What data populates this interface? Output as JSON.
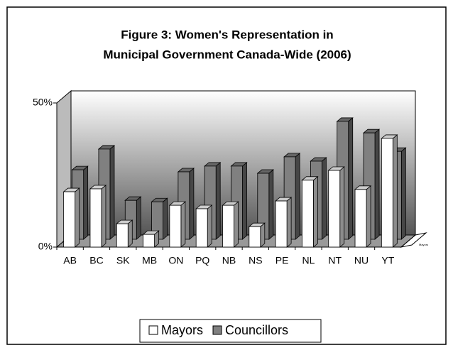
{
  "chart_data": {
    "type": "bar3d",
    "title": [
      "Figure 3: Women's Representation in",
      "Municipal Government Canada-Wide (2006)"
    ],
    "categories": [
      "AB",
      "BC",
      "SK",
      "MB",
      "ON",
      "PQ",
      "NB",
      "NS",
      "PE",
      "NL",
      "NT",
      "NU",
      "YT"
    ],
    "series": [
      {
        "name": "Mayors",
        "color": "#ffffff",
        "values": [
          19.2,
          20.2,
          8.1,
          4.4,
          14.5,
          13.3,
          14.5,
          7.1,
          16.0,
          23.2,
          26.6,
          20.0,
          37.7
        ]
      },
      {
        "name": "Councillors",
        "color": "#808080",
        "values": [
          24.1,
          31.3,
          13.5,
          13.0,
          23.4,
          25.4,
          25.4,
          22.9,
          28.6,
          27.1,
          40.9,
          36.9,
          30.5
        ]
      }
    ],
    "depth_label": "Mayors",
    "ylim": [
      0,
      50
    ],
    "yticks": [
      {
        "value": 0,
        "label": "0%"
      },
      {
        "value": 50,
        "label": "50%"
      }
    ],
    "legend": "bottom"
  }
}
